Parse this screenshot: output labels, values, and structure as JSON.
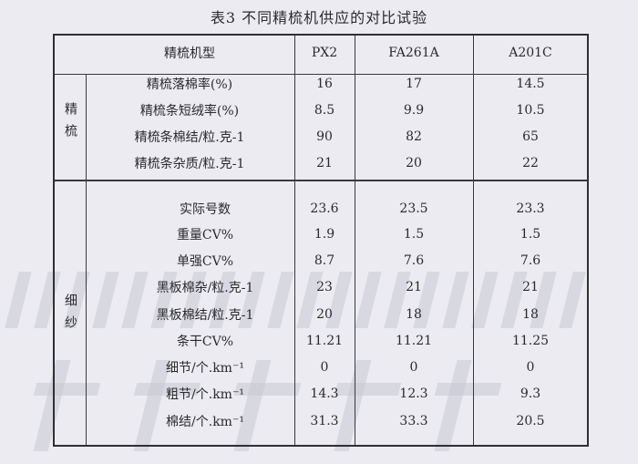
{
  "title": "表3  不同精梳机供应的对比试验",
  "header": {
    "label": "精梳机型",
    "columns": [
      "PX2",
      "FA261A",
      "A201C"
    ]
  },
  "groups": [
    {
      "name": "精梳",
      "rows": [
        {
          "label": "精梳落棉率(%)",
          "values": [
            "16",
            "17",
            "14.5"
          ]
        },
        {
          "label": "精梳条短绒率(%)",
          "values": [
            "8.5",
            "9.9",
            "10.5"
          ]
        },
        {
          "label": "精梳条棉结/粒.克-1",
          "values": [
            "90",
            "82",
            "65"
          ]
        },
        {
          "label": "精梳条杂质/粒.克-1",
          "values": [
            "21",
            "20",
            "22"
          ]
        }
      ]
    },
    {
      "name": "细纱",
      "rows": [
        {
          "label": "实际号数",
          "values": [
            "23.6",
            "23.5",
            "23.3"
          ]
        },
        {
          "label": "重量CV%",
          "values": [
            "1.9",
            "1.5",
            "1.5"
          ]
        },
        {
          "label": "单强CV%",
          "values": [
            "8.7",
            "7.6",
            "7.6"
          ]
        },
        {
          "label": "黑板棉杂/粒.克-1",
          "values": [
            "23",
            "21",
            "21"
          ]
        },
        {
          "label": "黑板棉结/粒.克-1",
          "values": [
            "20",
            "18",
            "18"
          ]
        },
        {
          "label": "条干CV%",
          "values": [
            "11.21",
            "11.21",
            "11.25"
          ]
        },
        {
          "label": "细节/个.km⁻¹",
          "values": [
            "0",
            "0",
            "0"
          ]
        },
        {
          "label": "粗节/个.km⁻¹",
          "values": [
            "14.3",
            "12.3",
            "9.3"
          ]
        },
        {
          "label": "棉结/个.km⁻¹",
          "values": [
            "31.3",
            "33.3",
            "20.5"
          ]
        }
      ]
    }
  ],
  "watermark": {
    "url": "www.ttmn.com",
    "name": "中国纺机网"
  }
}
